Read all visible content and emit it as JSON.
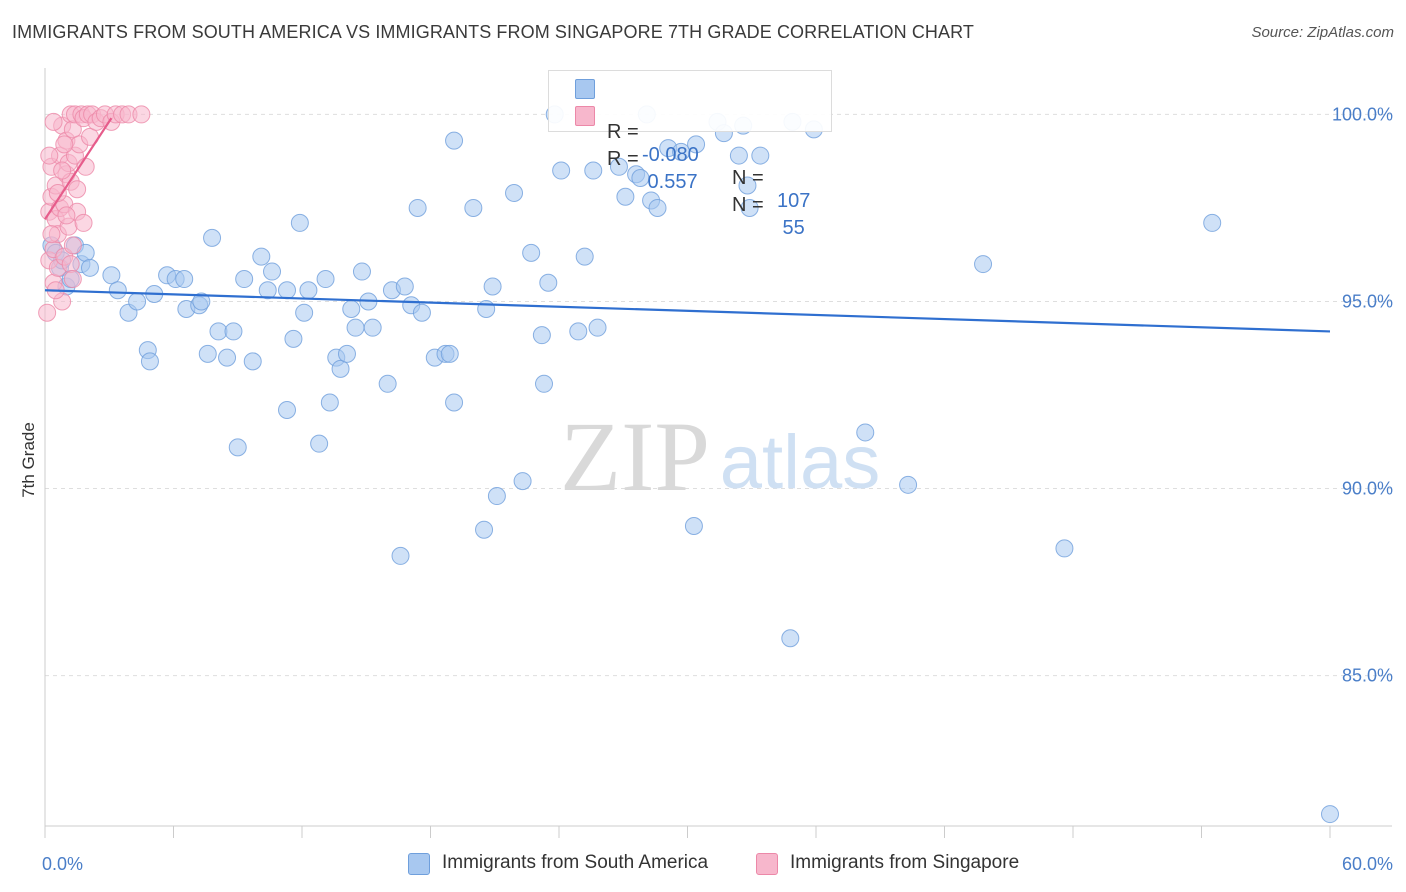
{
  "title": "IMMIGRANTS FROM SOUTH AMERICA VS IMMIGRANTS FROM SINGAPORE 7TH GRADE CORRELATION CHART",
  "source": "Source: ZipAtlas.com",
  "watermark": {
    "zip": "ZIP",
    "atlas": "atlas"
  },
  "legend_top": [
    {
      "r_label": "R =",
      "r_value": "-0.080",
      "n_label": "N =",
      "n_value": "107",
      "color": "#a8c8f0"
    },
    {
      "r_label": "R =",
      "r_value": " 0.557",
      "n_label": "N =",
      "n_value": " 55",
      "color": "#f7b7cc"
    }
  ],
  "legend_bottom": [
    {
      "label": "Immigrants from South America",
      "color": "#a8c8f0"
    },
    {
      "label": "Immigrants from Singapore",
      "color": "#f7b7cc"
    }
  ],
  "chart_data": {
    "type": "scatter",
    "title": "IMMIGRANTS FROM SOUTH AMERICA VS IMMIGRANTS FROM SINGAPORE 7TH GRADE CORRELATION CHART",
    "xlabel": "",
    "ylabel": "7th Grade",
    "xlim": [
      0,
      60
    ],
    "ylim": [
      80.5,
      101
    ],
    "x_tick_labels": [
      "0.0%",
      "60.0%"
    ],
    "y_ticks": [
      85,
      90,
      95,
      100
    ],
    "y_tick_labels": [
      "85.0%",
      "90.0%",
      "95.0%",
      "100.0%"
    ],
    "grid": true,
    "series": [
      {
        "name": "Immigrants from South America",
        "color": "#a8c8f0",
        "stroke": "#6f9fdc",
        "trend": {
          "x": [
            0,
            60
          ],
          "y": [
            95.3,
            94.2
          ],
          "color": "#2f6fd0"
        },
        "points": [
          [
            0.3,
            96.5
          ],
          [
            0.5,
            96.3
          ],
          [
            0.7,
            95.9
          ],
          [
            0.8,
            96.1
          ],
          [
            1.0,
            95.4
          ],
          [
            1.2,
            95.6
          ],
          [
            1.4,
            96.5
          ],
          [
            1.7,
            96.0
          ],
          [
            1.9,
            96.3
          ],
          [
            2.1,
            95.9
          ],
          [
            3.1,
            95.7
          ],
          [
            3.4,
            95.3
          ],
          [
            3.9,
            94.7
          ],
          [
            4.3,
            95.0
          ],
          [
            4.8,
            93.7
          ],
          [
            4.9,
            93.4
          ],
          [
            5.1,
            95.2
          ],
          [
            5.7,
            95.7
          ],
          [
            6.1,
            95.6
          ],
          [
            6.5,
            95.6
          ],
          [
            6.6,
            94.8
          ],
          [
            7.2,
            94.9
          ],
          [
            7.3,
            95.0
          ],
          [
            7.6,
            93.6
          ],
          [
            7.8,
            96.7
          ],
          [
            8.1,
            94.2
          ],
          [
            8.5,
            93.5
          ],
          [
            8.8,
            94.2
          ],
          [
            9.0,
            91.1
          ],
          [
            9.3,
            95.6
          ],
          [
            9.7,
            93.4
          ],
          [
            10.1,
            96.2
          ],
          [
            10.4,
            95.3
          ],
          [
            10.6,
            95.8
          ],
          [
            11.3,
            95.3
          ],
          [
            11.3,
            92.1
          ],
          [
            11.6,
            94.0
          ],
          [
            11.9,
            97.1
          ],
          [
            12.1,
            94.7
          ],
          [
            12.3,
            95.3
          ],
          [
            12.8,
            91.2
          ],
          [
            13.1,
            95.6
          ],
          [
            13.3,
            92.3
          ],
          [
            13.6,
            93.5
          ],
          [
            13.8,
            93.2
          ],
          [
            14.1,
            93.6
          ],
          [
            14.3,
            94.8
          ],
          [
            14.5,
            94.3
          ],
          [
            14.8,
            95.8
          ],
          [
            15.1,
            95.0
          ],
          [
            15.3,
            94.3
          ],
          [
            16.0,
            92.8
          ],
          [
            16.2,
            95.3
          ],
          [
            16.6,
            88.2
          ],
          [
            16.8,
            95.4
          ],
          [
            17.1,
            94.9
          ],
          [
            17.4,
            97.5
          ],
          [
            17.6,
            94.7
          ],
          [
            18.2,
            93.5
          ],
          [
            18.7,
            93.6
          ],
          [
            18.9,
            93.6
          ],
          [
            19.1,
            92.3
          ],
          [
            19.1,
            99.3
          ],
          [
            20.0,
            97.5
          ],
          [
            20.5,
            88.9
          ],
          [
            20.6,
            94.8
          ],
          [
            20.9,
            95.4
          ],
          [
            21.1,
            89.8
          ],
          [
            21.9,
            97.9
          ],
          [
            22.3,
            90.2
          ],
          [
            22.7,
            96.3
          ],
          [
            23.2,
            94.1
          ],
          [
            23.3,
            92.8
          ],
          [
            23.5,
            95.5
          ],
          [
            23.8,
            100.0
          ],
          [
            24.1,
            98.5
          ],
          [
            24.9,
            94.2
          ],
          [
            25.2,
            96.2
          ],
          [
            25.6,
            98.5
          ],
          [
            25.8,
            94.3
          ],
          [
            26.8,
            98.6
          ],
          [
            27.1,
            97.8
          ],
          [
            27.6,
            98.4
          ],
          [
            27.8,
            98.3
          ],
          [
            28.1,
            100.0
          ],
          [
            28.3,
            97.7
          ],
          [
            28.6,
            97.5
          ],
          [
            29.1,
            99.1
          ],
          [
            29.7,
            99.0
          ],
          [
            30.3,
            89.0
          ],
          [
            30.4,
            99.2
          ],
          [
            31.4,
            99.8
          ],
          [
            31.7,
            99.5
          ],
          [
            32.4,
            98.9
          ],
          [
            32.6,
            99.7
          ],
          [
            32.8,
            98.1
          ],
          [
            32.9,
            97.5
          ],
          [
            33.4,
            98.9
          ],
          [
            34.8,
            86.0
          ],
          [
            34.9,
            99.8
          ],
          [
            35.9,
            99.6
          ],
          [
            38.3,
            91.5
          ],
          [
            40.3,
            90.1
          ],
          [
            43.8,
            96.0
          ],
          [
            47.6,
            88.4
          ],
          [
            54.5,
            97.1
          ],
          [
            60.0,
            81.3
          ]
        ]
      },
      {
        "name": "Immigrants from Singapore",
        "color": "#f7b7cc",
        "stroke": "#ec88a8",
        "trend": {
          "x": [
            0,
            3.1
          ],
          "y": [
            97.2,
            99.9
          ],
          "color": "#e65c8b"
        },
        "points": [
          [
            0.1,
            94.7
          ],
          [
            0.2,
            96.1
          ],
          [
            0.2,
            97.4
          ],
          [
            0.3,
            97.8
          ],
          [
            0.3,
            98.6
          ],
          [
            0.4,
            95.5
          ],
          [
            0.4,
            96.4
          ],
          [
            0.5,
            97.2
          ],
          [
            0.5,
            98.1
          ],
          [
            0.6,
            95.9
          ],
          [
            0.6,
            96.8
          ],
          [
            0.7,
            97.5
          ],
          [
            0.7,
            98.9
          ],
          [
            0.8,
            99.7
          ],
          [
            0.8,
            95.0
          ],
          [
            0.9,
            96.2
          ],
          [
            0.9,
            97.6
          ],
          [
            1.0,
            98.4
          ],
          [
            1.0,
            99.3
          ],
          [
            1.1,
            98.7
          ],
          [
            1.1,
            97.0
          ],
          [
            1.2,
            98.2
          ],
          [
            1.2,
            100.0
          ],
          [
            1.3,
            99.6
          ],
          [
            1.3,
            96.5
          ],
          [
            1.4,
            98.9
          ],
          [
            1.4,
            100.0
          ],
          [
            1.5,
            97.4
          ],
          [
            1.6,
            99.2
          ],
          [
            1.7,
            100.0
          ],
          [
            1.8,
            99.9
          ],
          [
            1.9,
            98.6
          ],
          [
            2.0,
            100.0
          ],
          [
            2.1,
            99.4
          ],
          [
            2.2,
            100.0
          ],
          [
            2.4,
            99.8
          ],
          [
            2.6,
            99.9
          ],
          [
            2.8,
            100.0
          ],
          [
            3.1,
            99.8
          ],
          [
            3.3,
            100.0
          ],
          [
            3.6,
            100.0
          ],
          [
            3.9,
            100.0
          ],
          [
            4.5,
            100.0
          ],
          [
            0.2,
            98.9
          ],
          [
            0.3,
            96.8
          ],
          [
            0.5,
            95.3
          ],
          [
            0.6,
            97.9
          ],
          [
            0.8,
            98.5
          ],
          [
            1.0,
            97.3
          ],
          [
            1.2,
            96.0
          ],
          [
            1.5,
            98.0
          ],
          [
            1.8,
            97.1
          ],
          [
            0.4,
            99.8
          ],
          [
            0.9,
            99.2
          ],
          [
            1.3,
            95.6
          ]
        ]
      }
    ]
  }
}
